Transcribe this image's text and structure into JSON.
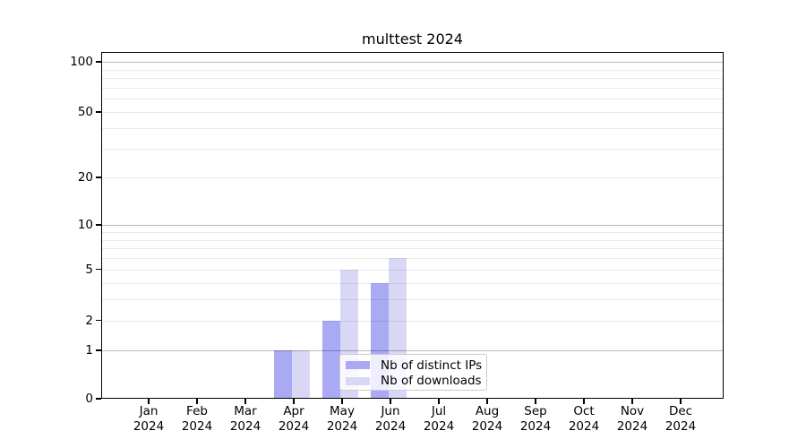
{
  "chart_data": {
    "type": "bar",
    "title": "multtest 2024",
    "x_categories": [
      {
        "month": "Jan",
        "year": "2024"
      },
      {
        "month": "Feb",
        "year": "2024"
      },
      {
        "month": "Mar",
        "year": "2024"
      },
      {
        "month": "Apr",
        "year": "2024"
      },
      {
        "month": "May",
        "year": "2024"
      },
      {
        "month": "Jun",
        "year": "2024"
      },
      {
        "month": "Jul",
        "year": "2024"
      },
      {
        "month": "Aug",
        "year": "2024"
      },
      {
        "month": "Sep",
        "year": "2024"
      },
      {
        "month": "Oct",
        "year": "2024"
      },
      {
        "month": "Nov",
        "year": "2024"
      },
      {
        "month": "Dec",
        "year": "2024"
      }
    ],
    "series": [
      {
        "name": "Nb of distinct IPs",
        "color": "#a9a9f4",
        "values": [
          0,
          0,
          0,
          1,
          2,
          4,
          0,
          0,
          0,
          0,
          0,
          0
        ]
      },
      {
        "name": "Nb of downloads",
        "color": "#d8d8f6",
        "values": [
          0,
          0,
          0,
          1,
          5,
          6,
          0,
          0,
          0,
          0,
          0,
          0
        ]
      }
    ],
    "y_axis": {
      "scale": "log1p",
      "ylim": [
        0,
        115
      ],
      "tick_values": [
        0,
        1,
        2,
        5,
        10,
        20,
        50,
        100
      ],
      "major_gridlines": [
        1,
        10,
        100
      ],
      "minor_gridlines": [
        2,
        3,
        4,
        5,
        6,
        7,
        8,
        9,
        20,
        30,
        40,
        50,
        60,
        70,
        80,
        90
      ]
    },
    "grid": true,
    "legend_position": "lower center"
  },
  "colors": {
    "major_grid": "#bababa",
    "minor_grid": "#eaeaea",
    "spine": "#000000",
    "legend_border": "#cccccc",
    "background": "#ffffff",
    "text": "#000000"
  }
}
